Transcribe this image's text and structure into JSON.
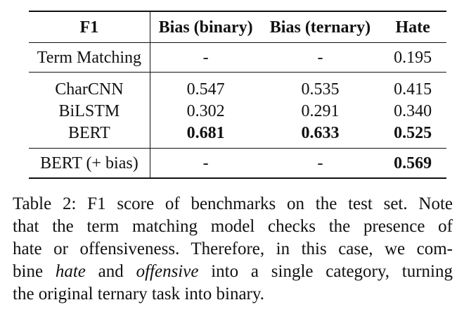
{
  "table": {
    "headers": [
      "F1",
      "Bias (binary)",
      "Bias (ternary)",
      "Hate"
    ],
    "sections": [
      {
        "rows": [
          {
            "name": "Term Matching",
            "bias_binary": "-",
            "bias_ternary": "-",
            "hate": "0.195",
            "bold": [
              false,
              false,
              false
            ]
          }
        ]
      },
      {
        "rows": [
          {
            "name": "CharCNN",
            "bias_binary": "0.547",
            "bias_ternary": "0.535",
            "hate": "0.415",
            "bold": [
              false,
              false,
              false
            ]
          },
          {
            "name": "BiLSTM",
            "bias_binary": "0.302",
            "bias_ternary": "0.291",
            "hate": "0.340",
            "bold": [
              false,
              false,
              false
            ]
          },
          {
            "name": "BERT",
            "bias_binary": "0.681",
            "bias_ternary": "0.633",
            "hate": "0.525",
            "bold": [
              true,
              true,
              true
            ]
          }
        ]
      },
      {
        "rows": [
          {
            "name": "BERT (+ bias)",
            "bias_binary": "-",
            "bias_ternary": "-",
            "hate": "0.569",
            "bold": [
              false,
              false,
              true
            ]
          }
        ]
      }
    ]
  },
  "caption": {
    "line1": "Table 2: F1 score of benchmarks on the test set. Note",
    "line2": "that the term matching model checks the presence of",
    "line3": "hate or offensiveness. Therefore, in this case, we com-",
    "line4_a": "bine ",
    "line4_em1": "hate",
    "line4_b": " and ",
    "line4_em2": "offensive",
    "line4_c": " into a single category, turning",
    "line5": "the original ternary task into binary."
  }
}
